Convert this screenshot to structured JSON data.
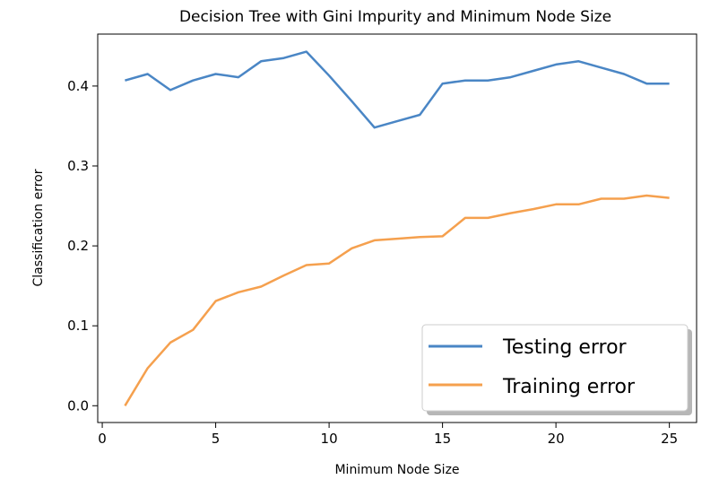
{
  "chart_data": {
    "type": "line",
    "title": "Decision Tree with Gini Impurity and Minimum Node Size",
    "xlabel": "Minimum Node Size",
    "ylabel": "Classification error",
    "xlim": [
      -0.2,
      26.2
    ],
    "ylim": [
      -0.021,
      0.465
    ],
    "xticks": [
      0,
      5,
      10,
      15,
      20,
      25
    ],
    "xtick_labels": [
      "0",
      "5",
      "10",
      "15",
      "20",
      "25"
    ],
    "yticks": [
      0.0,
      0.1,
      0.2,
      0.3,
      0.4
    ],
    "ytick_labels": [
      "0.0",
      "0.1",
      "0.2",
      "0.3",
      "0.4"
    ],
    "grid": false,
    "legend_position": "lower-right",
    "x": [
      1,
      2,
      3,
      4,
      5,
      6,
      7,
      8,
      9,
      10,
      11,
      12,
      13,
      14,
      15,
      16,
      17,
      18,
      19,
      20,
      21,
      22,
      23,
      24,
      25
    ],
    "series": [
      {
        "name": "Testing error",
        "color": "#4a86c5",
        "values": [
          0.407,
          0.415,
          0.395,
          0.407,
          0.415,
          0.411,
          0.431,
          0.435,
          0.443,
          0.413,
          0.381,
          0.348,
          0.356,
          0.364,
          0.403,
          0.407,
          0.407,
          0.411,
          0.419,
          0.427,
          0.431,
          0.423,
          0.415,
          0.403,
          0.403
        ]
      },
      {
        "name": "Training error",
        "color": "#f5a04e",
        "values": [
          0.0,
          0.047,
          0.079,
          0.095,
          0.131,
          0.142,
          0.149,
          0.163,
          0.176,
          0.178,
          0.197,
          0.207,
          0.209,
          0.211,
          0.212,
          0.235,
          0.235,
          0.241,
          0.246,
          0.252,
          0.252,
          0.259,
          0.259,
          0.263,
          0.26
        ]
      }
    ]
  }
}
